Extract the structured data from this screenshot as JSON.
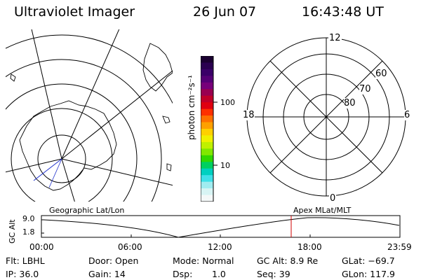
{
  "header": {
    "instrument": "Ultraviolet Imager",
    "date": "26 Jun 07",
    "time": "16:43:48 UT"
  },
  "colorbar": {
    "unit_label": "photon cm⁻²s⁻¹",
    "ticks": [
      "100",
      "10"
    ],
    "colors": [
      "#1a0030",
      "#2a0050",
      "#3a0068",
      "#550075",
      "#77007a",
      "#990050",
      "#c00028",
      "#e00010",
      "#ff3000",
      "#ff7000",
      "#ffa000",
      "#ffd000",
      "#f0f000",
      "#c0f000",
      "#80e800",
      "#30d800",
      "#00d060",
      "#00d0c0",
      "#40e0e8",
      "#a0ecf0",
      "#d8f4f4",
      "#f4f8f8"
    ]
  },
  "polar_plot": {
    "labels": {
      "top": "12",
      "bottom": "0",
      "left": "18",
      "right": "6"
    },
    "lat_labels": [
      "60",
      "70",
      "80"
    ]
  },
  "timeline": {
    "left_caption": "Geographic Lat/Lon",
    "right_caption": "Apex MLat/MLT",
    "y_axis_label": "GC Alt",
    "y_ticks": [
      "9.0",
      "1.8"
    ],
    "x_ticks": [
      "00:00",
      "06:00",
      "12:00",
      "18:00",
      "23:59"
    ],
    "marker_color": "#d00000"
  },
  "footer": {
    "flt": "Flt: LBHL",
    "ip": "IP: 36.0",
    "door": "Door: Open",
    "gain": "Gain: 14",
    "mode": "Mode: Normal",
    "dsp": "Dsp:",
    "dsp_value": "1.0",
    "gc_alt": "GC Alt: 8.9 Re",
    "seq": "Seq: 39",
    "glat": "GLat: −69.7",
    "glon": "GLon: 117.9"
  }
}
